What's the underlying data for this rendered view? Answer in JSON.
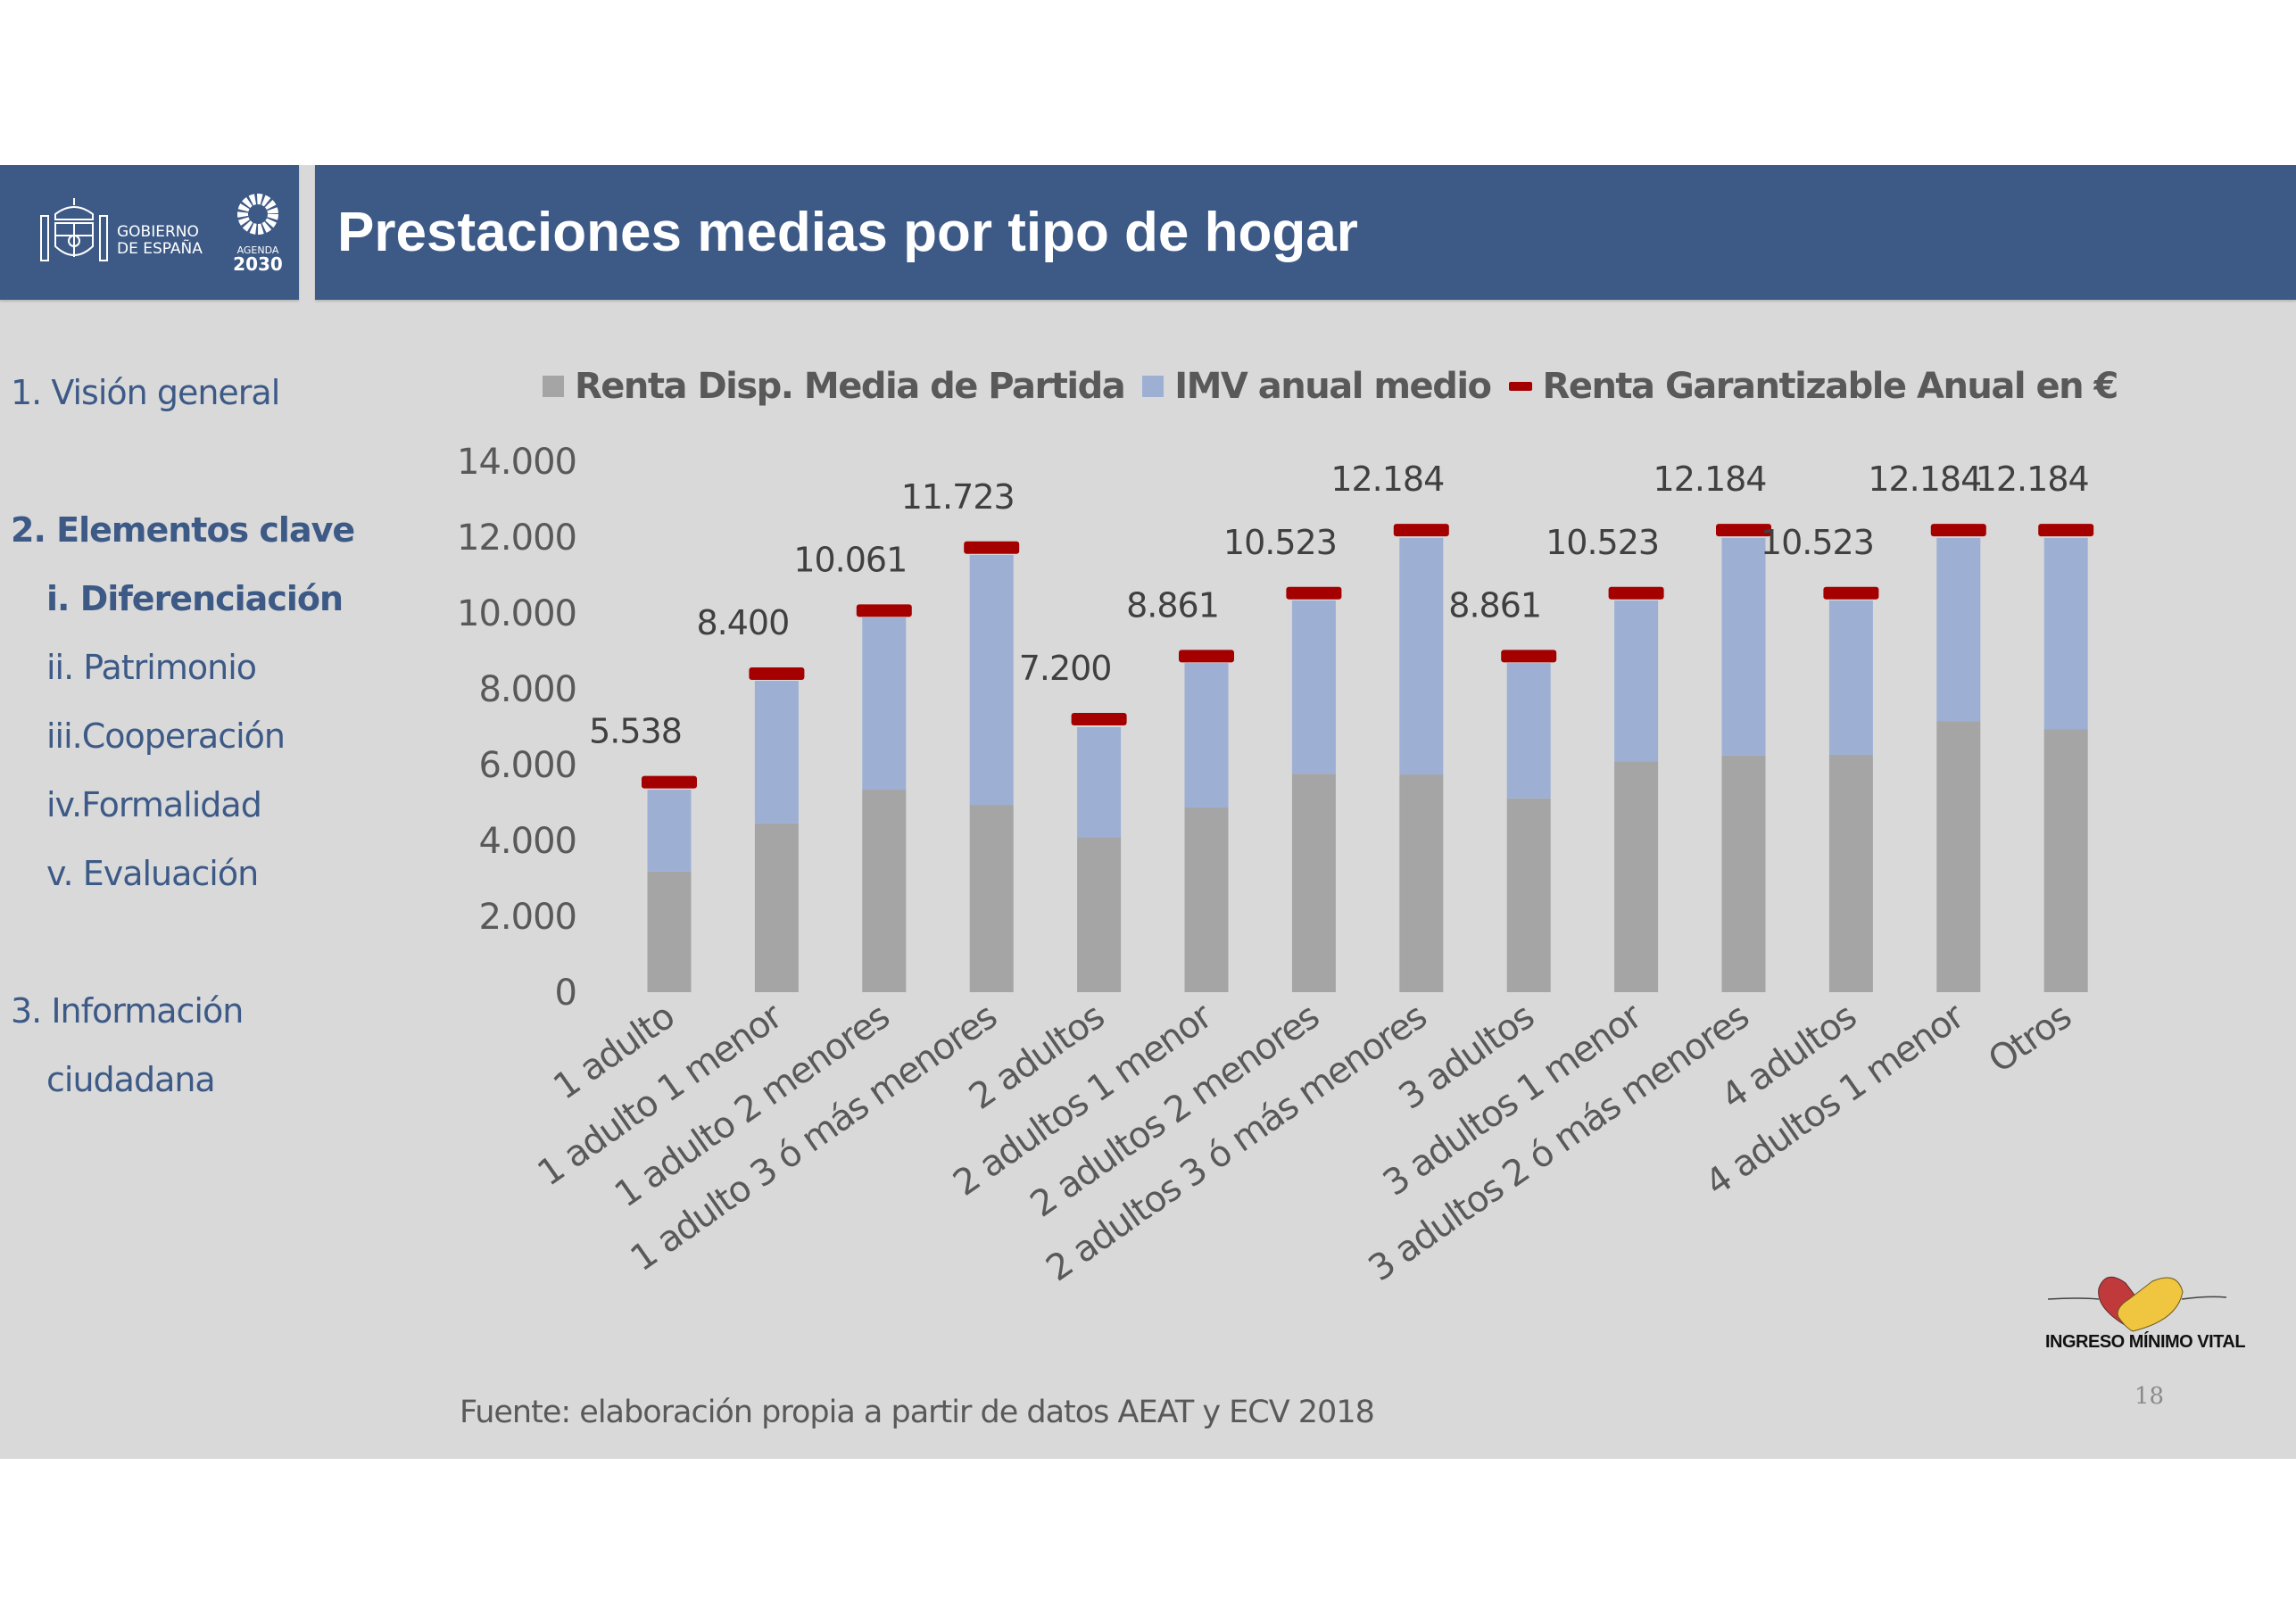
{
  "header": {
    "title": "Prestaciones medias por tipo de hogar",
    "logo_gov_line1": "GOBIERNO",
    "logo_gov_line2": "DE ESPAÑA",
    "logo_agenda_line1": "AGENDA",
    "logo_agenda_line2": "2030"
  },
  "sidebar": {
    "items": [
      {
        "label": "1. Visión general",
        "level": 1,
        "bold": false
      },
      {
        "label": "2. Elementos clave",
        "level": 1,
        "bold": true
      },
      {
        "label": "i.  Diferenciación",
        "level": 2,
        "bold": true
      },
      {
        "label": "ii. Patrimonio",
        "level": 2,
        "bold": false
      },
      {
        "label": "iii.Cooperación",
        "level": 2,
        "bold": false
      },
      {
        "label": "iv.Formalidad",
        "level": 2,
        "bold": false
      },
      {
        "label": "v. Evaluación",
        "level": 2,
        "bold": false
      },
      {
        "label": "3. Información",
        "level": 1,
        "bold": false
      },
      {
        "label": "ciudadana",
        "level": 2,
        "bold": false
      }
    ]
  },
  "colors": {
    "header_bg": "#3d5a87",
    "nav_text": "#3d5a87",
    "series_renta": "#a5a5a5",
    "series_imv": "#9db0d4",
    "series_garantizable": "#a50000"
  },
  "chart_data": {
    "type": "bar",
    "stacked": true,
    "title": "",
    "xlabel": "",
    "ylabel": "",
    "ylim": [
      0,
      14000
    ],
    "yticks": [
      0,
      2000,
      4000,
      6000,
      8000,
      10000,
      12000,
      14000
    ],
    "ytick_labels": [
      "0",
      "2.000",
      "4.000",
      "6.000",
      "8.000",
      "10.000",
      "12.000",
      "14.000"
    ],
    "grid": false,
    "legend_position": "top",
    "categories": [
      "1 adulto",
      "1 adulto 1 menor",
      "1 adulto 2 menores",
      "1 adulto 3 ó más menores",
      "2 adultos",
      "2 adultos 1 menor",
      "2 adultos 2 menores",
      "2 adultos 3 ó más menores",
      "3 adultos",
      "3 adultos 1 menor",
      "3 adultos 2 ó más menores",
      "4 adultos",
      "4 adultos 1 menor",
      "Otros"
    ],
    "series": [
      {
        "name": "Renta Disp. Media de Partida",
        "kind": "bar",
        "values": [
          3180,
          4450,
          5340,
          4940,
          4090,
          4870,
          5760,
          5740,
          5110,
          6090,
          6240,
          6260,
          7150,
          6940
        ]
      },
      {
        "name": "IMV anual medio",
        "kind": "bar",
        "values": [
          2160,
          3760,
          4540,
          6590,
          2900,
          3810,
          4570,
          6240,
          3570,
          4240,
          5740,
          4070,
          4830,
          5040
        ]
      },
      {
        "name": "Renta Garantizable Anual en €",
        "kind": "marker",
        "values": [
          5538,
          8400,
          10061,
          11723,
          7200,
          8861,
          10523,
          12184,
          8861,
          10523,
          12184,
          10523,
          12184,
          12184
        ],
        "labels": [
          "5.538",
          "8.400",
          "10.061",
          "11.723",
          "7.200",
          "8.861",
          "10.523",
          "12.184",
          "8.861",
          "10.523",
          "12.184",
          "10.523",
          "12.184",
          "12.184"
        ]
      }
    ]
  },
  "footer": {
    "source": "Fuente: elaboración propia a partir de datos AEAT y ECV 2018",
    "page_number": "18",
    "imv_logo_text": "INGRESO MÍNIMO VITAL"
  }
}
